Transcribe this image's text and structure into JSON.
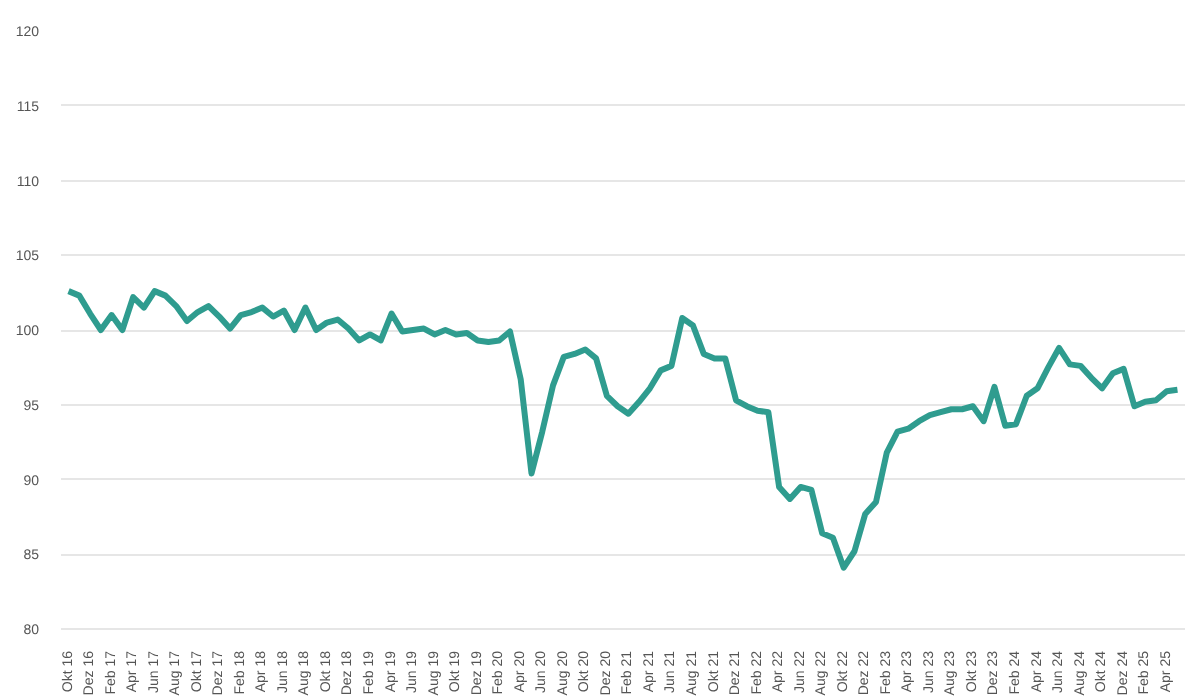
{
  "chart_data": {
    "type": "line",
    "categories": [
      "Okt 16",
      null,
      "Dez 16",
      null,
      "Feb 17",
      null,
      "Apr 17",
      null,
      "Jun 17",
      null,
      "Aug 17",
      null,
      "Okt 17",
      null,
      "Dez 17",
      null,
      "Feb 18",
      null,
      "Apr 18",
      null,
      "Jun 18",
      null,
      "Aug 18",
      null,
      "Okt 18",
      null,
      "Dez 18",
      null,
      "Feb 19",
      null,
      "Apr 19",
      null,
      "Jun 19",
      null,
      "Aug 19",
      null,
      "Okt 19",
      null,
      "Dez 19",
      null,
      "Feb 20",
      null,
      "Apr 20",
      null,
      "Jun 20",
      null,
      "Aug 20",
      null,
      "Okt 20",
      null,
      "Dez 20",
      null,
      "Feb 21",
      null,
      "Apr 21",
      null,
      "Jun 21",
      null,
      "Aug 21",
      null,
      "Okt 21",
      null,
      "Dez 21",
      null,
      "Feb 22",
      null,
      "Apr 22",
      null,
      "Jun 22",
      null,
      "Aug 22",
      null,
      "Okt 22",
      null,
      "Dez 22",
      null,
      "Feb 23",
      null,
      "Apr 23",
      null,
      "Jun 23",
      null,
      "Aug 23",
      null,
      "Okt 23",
      null,
      "Dez 23",
      null,
      "Feb 24",
      null,
      "Apr 24",
      null,
      "Jun 24",
      null,
      "Aug 24",
      null,
      "Okt 24",
      null,
      "Dez 24",
      null,
      "Feb 25",
      null,
      "Apr 25",
      null
    ],
    "series": [
      {
        "color": "#2f9c8f",
        "values": [
          102.6,
          102.3,
          101.1,
          100.0,
          101.0,
          100.0,
          102.2,
          101.5,
          102.6,
          102.3,
          101.6,
          100.6,
          101.2,
          101.6,
          100.9,
          100.1,
          101.0,
          101.2,
          101.5,
          100.9,
          101.3,
          100.0,
          101.5,
          100.0,
          100.5,
          100.7,
          100.1,
          99.3,
          99.7,
          99.3,
          101.1,
          99.9,
          100.0,
          100.1,
          99.7,
          100.0,
          99.7,
          99.8,
          99.3,
          99.2,
          99.3,
          99.9,
          96.7,
          90.4,
          93.2,
          96.3,
          98.2,
          98.4,
          98.7,
          98.1,
          95.6,
          94.9,
          94.4,
          95.2,
          96.1,
          97.3,
          97.6,
          100.8,
          100.3,
          98.4,
          98.1,
          98.1,
          95.3,
          94.9,
          94.6,
          94.5,
          89.5,
          88.7,
          89.5,
          89.3,
          86.4,
          86.1,
          84.1,
          85.2,
          87.7,
          88.5,
          91.8,
          93.2,
          93.4,
          93.9,
          94.3,
          94.5,
          94.7,
          94.7,
          94.9,
          93.9,
          96.2,
          93.6,
          93.7,
          95.6,
          96.1,
          97.5,
          98.8,
          97.7,
          97.6,
          96.8,
          96.1,
          97.1,
          97.4,
          94.9,
          95.2,
          95.3,
          95.9,
          96.0
        ]
      }
    ],
    "ylim": [
      80,
      120
    ],
    "yticks": [
      80,
      85,
      90,
      95,
      100,
      105,
      110,
      115,
      120
    ],
    "grid": "y",
    "marker": "none",
    "line_style": "solid"
  }
}
